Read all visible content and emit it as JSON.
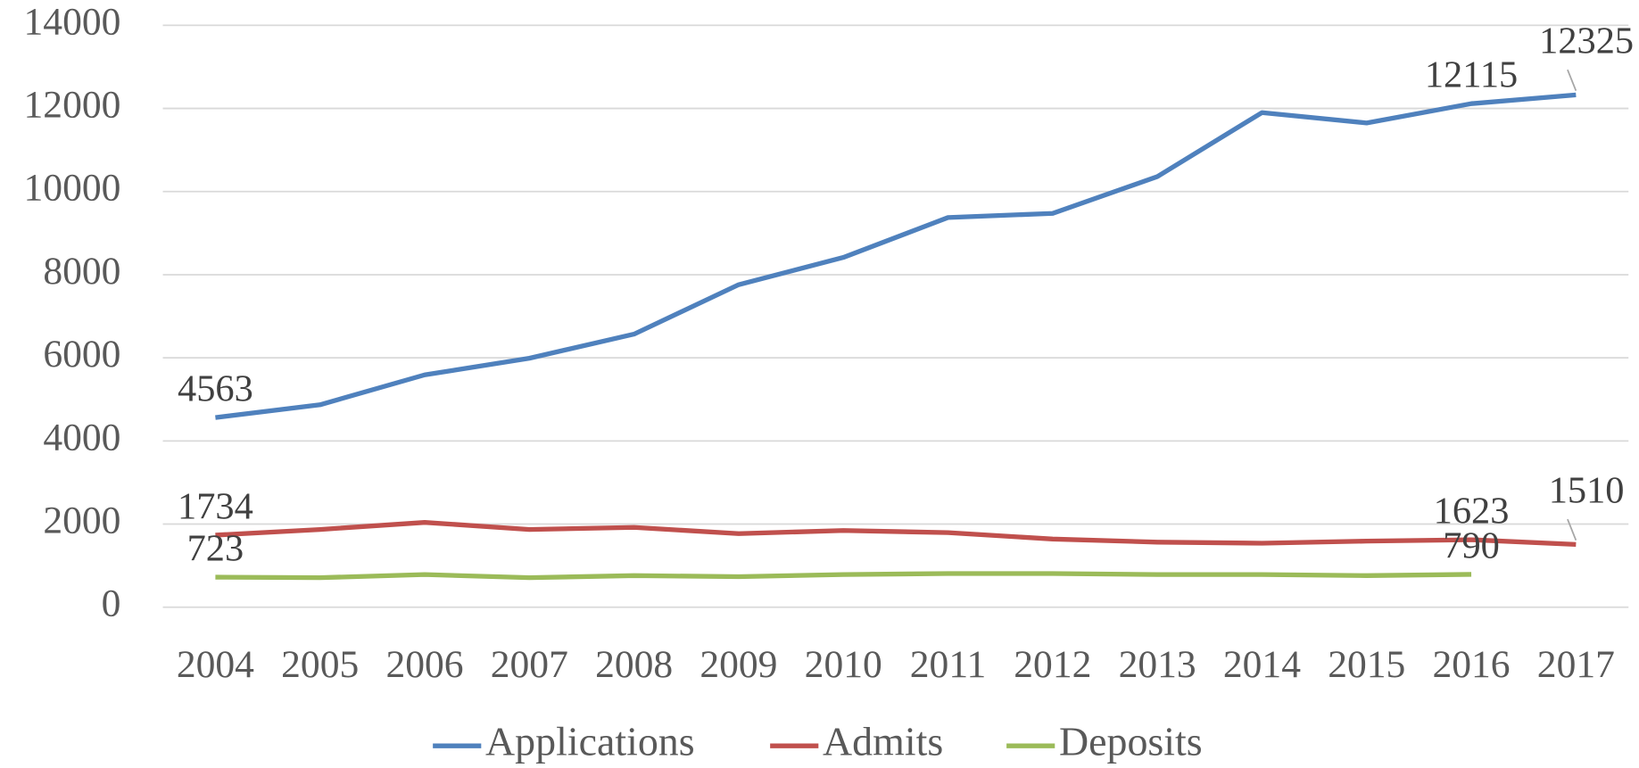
{
  "chart_data": {
    "type": "line",
    "categories": [
      "2004",
      "2005",
      "2006",
      "2007",
      "2008",
      "2009",
      "2010",
      "2011",
      "2012",
      "2013",
      "2014",
      "2015",
      "2016",
      "2017"
    ],
    "series": [
      {
        "name": "Applications",
        "color": "#4f81bd",
        "values": [
          4563,
          4870,
          5590,
          5990,
          6570,
          7760,
          8415,
          9375,
          9475,
          10360,
          11900,
          11650,
          12115,
          12325
        ],
        "value_labels": [
          "4563",
          null,
          null,
          null,
          null,
          null,
          null,
          null,
          null,
          null,
          null,
          null,
          "12115",
          "12325"
        ]
      },
      {
        "name": "Admits",
        "color": "#c0504d",
        "values": [
          1734,
          1870,
          2040,
          1870,
          1920,
          1770,
          1845,
          1795,
          1640,
          1565,
          1540,
          1590,
          1623,
          1510
        ],
        "value_labels": [
          "1734",
          null,
          null,
          null,
          null,
          null,
          null,
          null,
          null,
          null,
          null,
          null,
          "1623",
          "1510"
        ]
      },
      {
        "name": "Deposits",
        "color": "#9bbb59",
        "values": [
          723,
          710,
          785,
          710,
          760,
          735,
          785,
          810,
          810,
          785,
          785,
          760,
          790,
          null
        ],
        "value_labels": [
          "723",
          null,
          null,
          null,
          null,
          null,
          null,
          null,
          null,
          null,
          null,
          null,
          "790",
          null
        ]
      }
    ],
    "ylim": [
      0,
      14000
    ],
    "yticks": [
      0,
      2000,
      4000,
      6000,
      8000,
      10000,
      12000,
      14000
    ],
    "grid": true,
    "legend": "bottom"
  }
}
